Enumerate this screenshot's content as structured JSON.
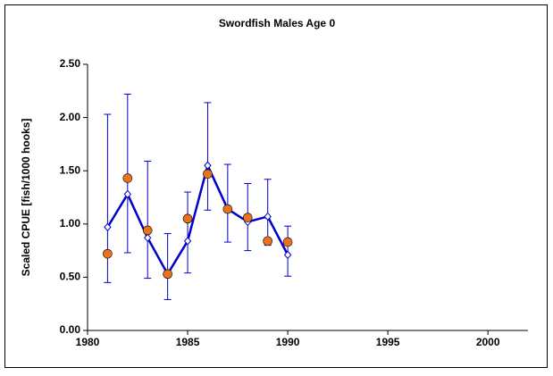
{
  "chart_data": {
    "type": "line",
    "title": "Swordfish Males Age  0",
    "y_label": "Scaled CPUE [fish/1000 hooks]",
    "x": [
      1981,
      1982,
      1983,
      1984,
      1985,
      1986,
      1987,
      1988,
      1989,
      1990
    ],
    "series": [
      {
        "color": "#0000cc",
        "marker": "diamond",
        "values": [
          0.97,
          1.28,
          0.87,
          0.53,
          0.84,
          1.55,
          1.14,
          1.02,
          1.07,
          0.71
        ],
        "lower": [
          0.45,
          0.73,
          0.49,
          0.29,
          0.54,
          1.13,
          0.83,
          0.75,
          0.8,
          0.51
        ],
        "upper": [
          2.03,
          2.22,
          1.59,
          0.91,
          1.3,
          2.14,
          1.56,
          1.38,
          1.42,
          0.98
        ]
      },
      {
        "color": "#e8731a",
        "marker": "circle",
        "values": [
          0.72,
          1.43,
          0.94,
          0.53,
          1.05,
          1.47,
          1.14,
          1.06,
          0.84,
          0.83
        ]
      }
    ],
    "xlim": [
      1980,
      2002
    ],
    "xticks": [
      1980,
      1985,
      1990,
      1995,
      2000
    ],
    "ylim": [
      0,
      2.5
    ],
    "yticks": [
      {
        "value": 0,
        "label": "0.00"
      },
      {
        "value": 0.5,
        "label": "0.50"
      },
      {
        "value": 1,
        "label": "1.00"
      },
      {
        "value": 1.5,
        "label": "1.50"
      },
      {
        "value": 2,
        "label": "2.00"
      },
      {
        "value": 2.5,
        "label": "2.50"
      }
    ]
  }
}
